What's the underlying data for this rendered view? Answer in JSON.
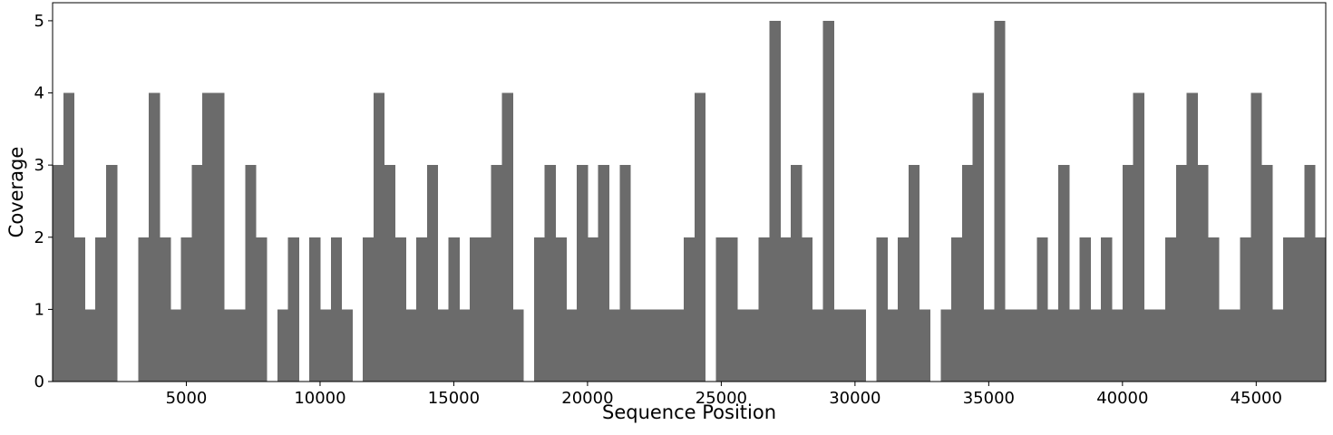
{
  "chart_data": {
    "type": "area",
    "xlabel": "Sequence Position",
    "ylabel": "Coverage",
    "color": "#6b6b6b",
    "x": [
      0,
      400,
      800,
      1200,
      1600,
      2000,
      2400,
      2800,
      3200,
      3600,
      4000,
      4400,
      4800,
      5200,
      5600,
      6000,
      6400,
      6800,
      7200,
      7600,
      8000,
      8400,
      8800,
      9200,
      9600,
      10000,
      10400,
      10800,
      11200,
      11600,
      12000,
      12400,
      12800,
      13200,
      13600,
      14000,
      14400,
      14800,
      15200,
      15600,
      16000,
      16400,
      16800,
      17200,
      17600,
      18000,
      18400,
      18800,
      19200,
      19600,
      20000,
      20400,
      20800,
      21200,
      21600,
      22000,
      22400,
      22800,
      23200,
      23600,
      24000,
      24400,
      24800,
      25200,
      25600,
      26000,
      26400,
      26800,
      27200,
      27600,
      28000,
      28400,
      28800,
      29200,
      29600,
      30000,
      30400,
      30800,
      31200,
      31600,
      32000,
      32400,
      32800,
      33200,
      33600,
      34000,
      34400,
      34800,
      35200,
      35600,
      36000,
      36400,
      36800,
      37200,
      37600,
      38000,
      38400,
      38800,
      39200,
      39600,
      40000,
      40400,
      40800,
      41200,
      41600,
      42000,
      42400,
      42800,
      43200,
      43600,
      44000,
      44400,
      44800,
      45200,
      45600,
      46000,
      46400,
      46800,
      47200
    ],
    "values": [
      3,
      4,
      2,
      1,
      2,
      3,
      0,
      0,
      2,
      4,
      2,
      1,
      2,
      3,
      4,
      4,
      1,
      1,
      3,
      2,
      0,
      1,
      2,
      0,
      2,
      1,
      2,
      1,
      0,
      2,
      4,
      3,
      2,
      1,
      2,
      3,
      1,
      2,
      1,
      2,
      2,
      3,
      4,
      1,
      0,
      2,
      3,
      2,
      1,
      3,
      2,
      3,
      1,
      3,
      1,
      1,
      1,
      1,
      1,
      2,
      4,
      0,
      2,
      2,
      1,
      1,
      2,
      5,
      2,
      3,
      2,
      1,
      5,
      1,
      1,
      1,
      0,
      2,
      1,
      2,
      3,
      1,
      0,
      1,
      2,
      3,
      4,
      1,
      5,
      1,
      1,
      1,
      2,
      1,
      3,
      1,
      2,
      1,
      2,
      1,
      3,
      4,
      1,
      1,
      2,
      3,
      4,
      3,
      2,
      1,
      1,
      2,
      4,
      3,
      1,
      2,
      2,
      3,
      2
    ],
    "xlim": [
      0,
      47600
    ],
    "ylim": [
      0,
      5.25
    ],
    "xticks": [
      5000,
      10000,
      15000,
      20000,
      25000,
      30000,
      35000,
      40000,
      45000
    ],
    "yticks": [
      0,
      1,
      2,
      3,
      4,
      5
    ]
  }
}
